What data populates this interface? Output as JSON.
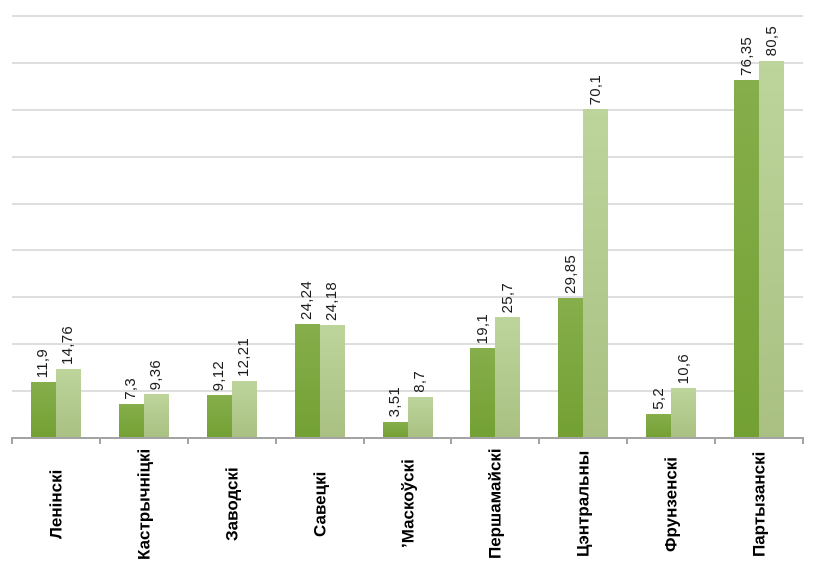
{
  "chart_data": {
    "type": "bar",
    "title": "",
    "xlabel": "",
    "ylabel": "",
    "categories": [
      "Ленінскі",
      "Кастрычніцкі",
      "Заводскі",
      "Савецкі",
      "ʼМаскоўскі",
      "Першамайскі",
      "Цэнтральны",
      "Фрунзенскі",
      "Партызанскі"
    ],
    "series": [
      {
        "name": "series-dark-green",
        "color": "#7aa438",
        "color_top": "#86ae4b",
        "color_bottom": "#73a033",
        "values": [
          11.9,
          7.3,
          9.12,
          24.24,
          3.51,
          19.1,
          29.85,
          5.2,
          76.35
        ],
        "value_labels": [
          "11,9",
          "7,3",
          "9,12",
          "24,24",
          "3,51",
          "19,1",
          "29,85",
          "5,2",
          "76,35"
        ]
      },
      {
        "name": "series-light-green",
        "color": "#b3cd8e",
        "color_top": "#bdd59b",
        "color_bottom": "#a9c082",
        "values": [
          14.76,
          9.36,
          12.21,
          24.18,
          8.7,
          25.7,
          70.1,
          10.6,
          80.5
        ],
        "value_labels": [
          "14,76",
          "9,36",
          "12,21",
          "24,18",
          "8,7",
          "25,7",
          "70,1",
          "10,6",
          "80,5"
        ]
      }
    ],
    "ylim": [
      0,
      90
    ],
    "gridline_step": 10,
    "grid": true,
    "legend_position": "none",
    "decimal_separator": ",",
    "value_labels_rotation_deg": -90,
    "category_labels_rotation_deg": -90,
    "axis_color": "#a3a3a3",
    "gridline_color": "#dedede",
    "background_color": "#ffffff",
    "label_text_color": "#1c1c1c",
    "category_text_color": "#000000"
  }
}
